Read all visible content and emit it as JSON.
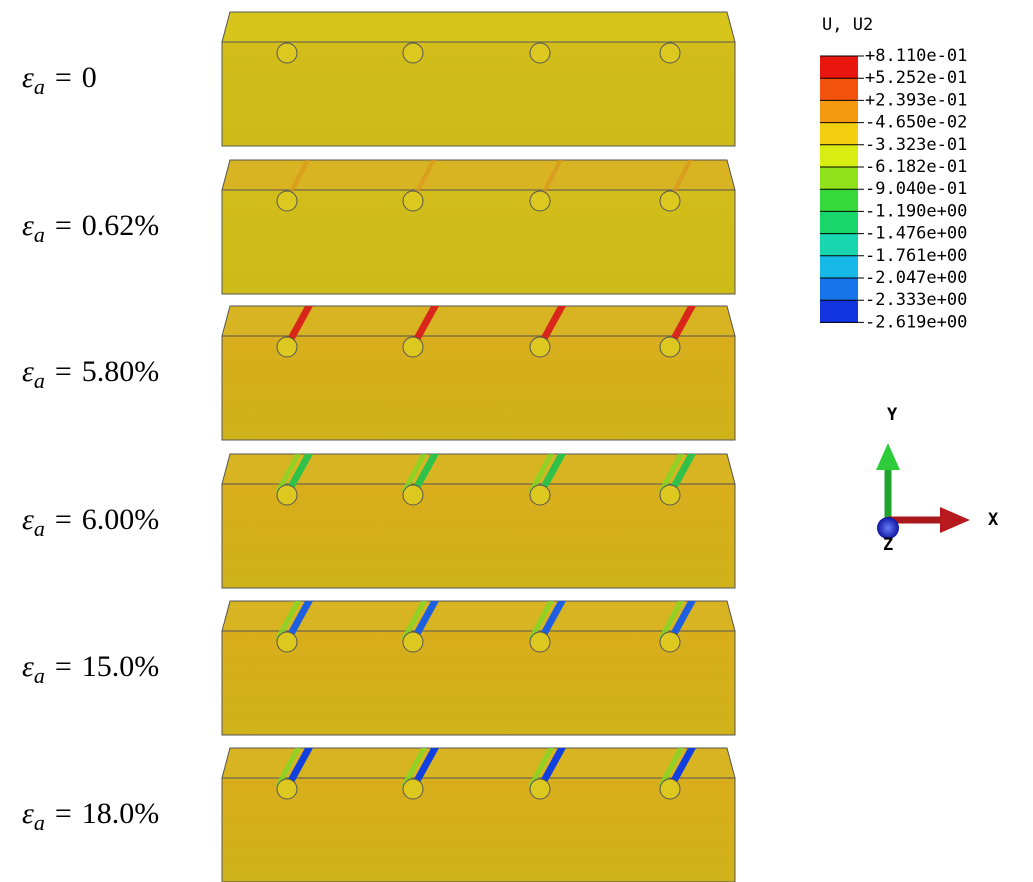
{
  "panels": [
    {
      "label": {
        "symbol": "ε",
        "subscript": "a",
        "equals": "=",
        "value": "0"
      }
    },
    {
      "label": {
        "symbol": "ε",
        "subscript": "a",
        "equals": "=",
        "value": "0.62%"
      }
    },
    {
      "label": {
        "symbol": "ε",
        "subscript": "a",
        "equals": "=",
        "value": "5.80%"
      }
    },
    {
      "label": {
        "symbol": "ε",
        "subscript": "a",
        "equals": "=",
        "value": "6.00%"
      }
    },
    {
      "label": {
        "symbol": "ε",
        "subscript": "a",
        "equals": "=",
        "value": "15.0%"
      }
    },
    {
      "label": {
        "symbol": "ε",
        "subscript": "a",
        "equals": "=",
        "value": "18.0%"
      }
    }
  ],
  "legend": {
    "title": "U, U2",
    "values": [
      "+8.110e-01",
      "+5.252e-01",
      "+2.393e-01",
      "-4.650e-02",
      "-3.323e-01",
      "-6.182e-01",
      "-9.040e-01",
      "-1.190e+00",
      "-1.476e+00",
      "-1.761e+00",
      "-2.047e+00",
      "-2.333e+00",
      "-2.619e+00"
    ]
  },
  "triad": {
    "y": "Y",
    "x": "X",
    "z": "Z"
  }
}
